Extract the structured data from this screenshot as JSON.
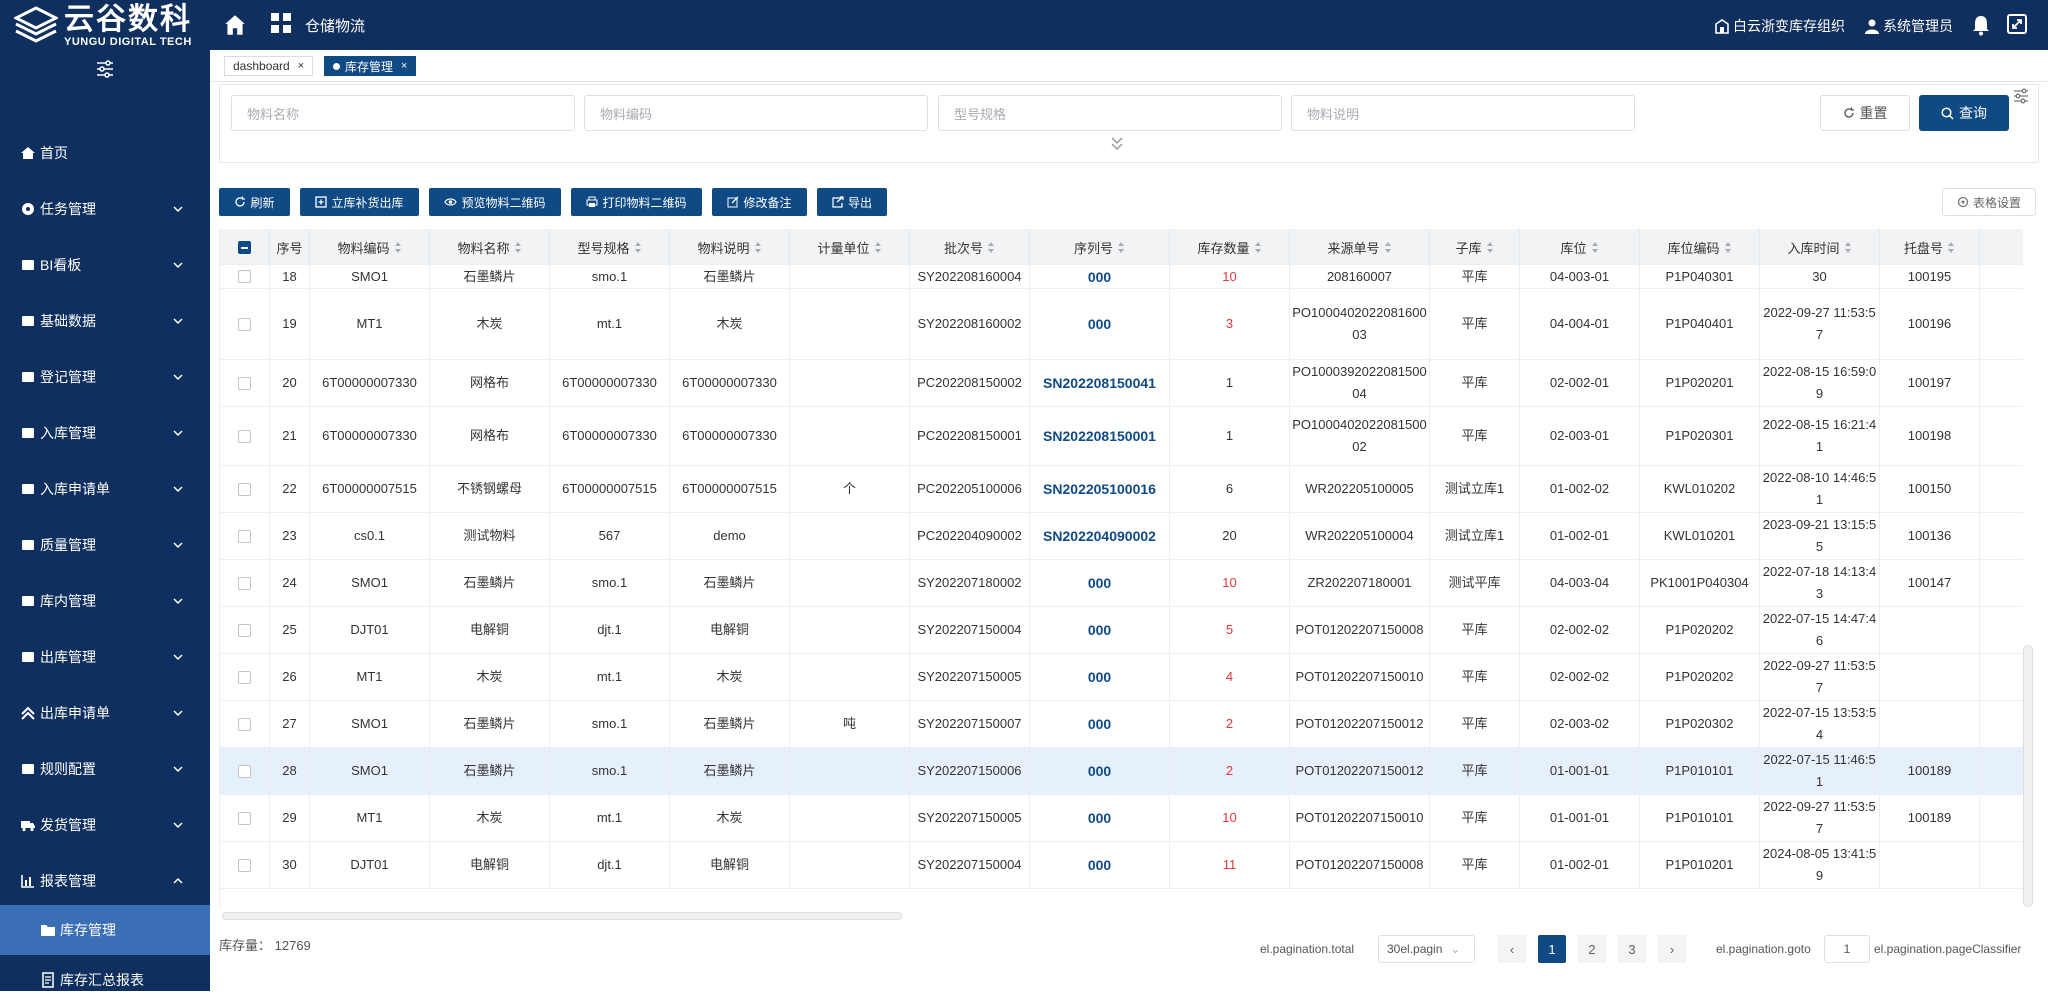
{
  "topbar": {
    "brand_cn": "云谷数科",
    "brand_en": "YUNGU DIGITAL TECH",
    "app_title": "仓储物流",
    "org": "白云浙变库存组织",
    "user": "系统管理员"
  },
  "sidebar": {
    "items": [
      {
        "label": "首页",
        "icon": "home-icon"
      },
      {
        "label": "任务管理",
        "icon": "gear-icon"
      },
      {
        "label": "BI看板",
        "icon": "folder-icon"
      },
      {
        "label": "基础数据",
        "icon": "table-icon"
      },
      {
        "label": "登记管理",
        "icon": "register-icon"
      },
      {
        "label": "入库管理",
        "icon": "inbound-icon"
      },
      {
        "label": "入库申请单",
        "icon": "request-icon"
      },
      {
        "label": "质量管理",
        "icon": "quality-icon"
      },
      {
        "label": "库内管理",
        "icon": "warehouse-icon"
      },
      {
        "label": "出库管理",
        "icon": "outbound-icon"
      },
      {
        "label": "出库申请单",
        "icon": "up-arrow-icon"
      },
      {
        "label": "规则配置",
        "icon": "folder-icon"
      },
      {
        "label": "发货管理",
        "icon": "truck-icon"
      },
      {
        "label": "报表管理",
        "icon": "chart-icon"
      }
    ],
    "sub_items": [
      {
        "label": "库存管理",
        "icon": "folder-icon"
      },
      {
        "label": "库存汇总报表",
        "icon": "document-icon"
      }
    ]
  },
  "tabs": [
    {
      "label": "dashboard"
    },
    {
      "label": "库存管理"
    }
  ],
  "search": {
    "material_name_placeholder": "物料名称",
    "material_code_placeholder": "物料编码",
    "spec_placeholder": "型号规格",
    "desc_placeholder": "物料说明",
    "reset_label": "重置",
    "query_label": "查询"
  },
  "toolbar": {
    "refresh": "刷新",
    "replenish": "立库补货出库",
    "preview_qr": "预览物料二维码",
    "print_qr": "打印物料二维码",
    "edit_remark": "修改备注",
    "export": "导出",
    "table_settings": "表格设置"
  },
  "table": {
    "headers": [
      "序号",
      "物料编码",
      "物料名称",
      "型号规格",
      "物料说明",
      "计量单位",
      "批次号",
      "序列号",
      "库存数量",
      "来源单号",
      "子库",
      "库位",
      "库位编码",
      "入库时间",
      "托盘号"
    ],
    "rows": [
      {
        "no": "18",
        "code": "SMO1",
        "name": "石墨鳞片",
        "spec": "smo.1",
        "desc": "石墨鳞片",
        "unit": "",
        "batch": "SY202208160004",
        "serial": "000",
        "qty": "10",
        "source": "208160007",
        "sub": "平库",
        "loc": "04-003-01",
        "loc_code": "P1P040301",
        "time": "30",
        "pallet": "100195"
      },
      {
        "no": "19",
        "code": "MT1",
        "name": "木炭",
        "spec": "mt.1",
        "desc": "木炭",
        "unit": "",
        "batch": "SY202208160002",
        "serial": "000",
        "qty": "3",
        "source": "PO100040202208160003",
        "sub": "平库",
        "loc": "04-004-01",
        "loc_code": "P1P040401",
        "time": "2022-09-27 11:53:57",
        "pallet": "100196"
      },
      {
        "no": "20",
        "code": "6T00000007330",
        "name": "网格布",
        "spec": "6T00000007330",
        "desc": "6T00000007330",
        "unit": "",
        "batch": "PC202208150002",
        "serial": "SN202208150041",
        "qty": "1",
        "source": "PO100039202208150004",
        "sub": "平库",
        "loc": "02-002-01",
        "loc_code": "P1P020201",
        "time": "2022-08-15 16:59:09",
        "pallet": "100197"
      },
      {
        "no": "21",
        "code": "6T00000007330",
        "name": "网格布",
        "spec": "6T00000007330",
        "desc": "6T00000007330",
        "unit": "",
        "batch": "PC202208150001",
        "serial": "SN202208150001",
        "qty": "1",
        "source": "PO100040202208150002",
        "sub": "平库",
        "loc": "02-003-01",
        "loc_code": "P1P020301",
        "time": "2022-08-15 16:21:41",
        "pallet": "100198"
      },
      {
        "no": "22",
        "code": "6T00000007515",
        "name": "不锈钢螺母",
        "spec": "6T00000007515",
        "desc": "6T00000007515",
        "unit": "个",
        "batch": "PC202205100006",
        "serial": "SN202205100016",
        "qty": "6",
        "source": "WR202205100005",
        "sub": "测试立库1",
        "loc": "01-002-02",
        "loc_code": "KWL010202",
        "time": "2022-08-10 14:46:51",
        "pallet": "100150"
      },
      {
        "no": "23",
        "code": "cs0.1",
        "name": "测试物料",
        "spec": "567",
        "desc": "demo",
        "unit": "",
        "batch": "PC202204090002",
        "serial": "SN202204090002",
        "qty": "20",
        "source": "WR202205100004",
        "sub": "测试立库1",
        "loc": "01-002-01",
        "loc_code": "KWL010201",
        "time": "2023-09-21 13:15:55",
        "pallet": "100136"
      },
      {
        "no": "24",
        "code": "SMO1",
        "name": "石墨鳞片",
        "spec": "smo.1",
        "desc": "石墨鳞片",
        "unit": "",
        "batch": "SY202207180002",
        "serial": "000",
        "qty": "10",
        "source": "ZR202207180001",
        "sub": "测试平库",
        "loc": "04-003-04",
        "loc_code": "PK1001P040304",
        "time": "2022-07-18 14:13:43",
        "pallet": "100147"
      },
      {
        "no": "25",
        "code": "DJT01",
        "name": "电解铜",
        "spec": "djt.1",
        "desc": "电解铜",
        "unit": "",
        "batch": "SY202207150004",
        "serial": "000",
        "qty": "5",
        "source": "POT01202207150008",
        "sub": "平库",
        "loc": "02-002-02",
        "loc_code": "P1P020202",
        "time": "2022-07-15 14:47:46",
        "pallet": ""
      },
      {
        "no": "26",
        "code": "MT1",
        "name": "木炭",
        "spec": "mt.1",
        "desc": "木炭",
        "unit": "",
        "batch": "SY202207150005",
        "serial": "000",
        "qty": "4",
        "source": "POT01202207150010",
        "sub": "平库",
        "loc": "02-002-02",
        "loc_code": "P1P020202",
        "time": "2022-09-27 11:53:57",
        "pallet": ""
      },
      {
        "no": "27",
        "code": "SMO1",
        "name": "石墨鳞片",
        "spec": "smo.1",
        "desc": "石墨鳞片",
        "unit": "吨",
        "batch": "SY202207150007",
        "serial": "000",
        "qty": "2",
        "source": "POT01202207150012",
        "sub": "平库",
        "loc": "02-003-02",
        "loc_code": "P1P020302",
        "time": "2022-07-15 13:53:54",
        "pallet": ""
      },
      {
        "no": "28",
        "code": "SMO1",
        "name": "石墨鳞片",
        "spec": "smo.1",
        "desc": "石墨鳞片",
        "unit": "",
        "batch": "SY202207150006",
        "serial": "000",
        "qty": "2",
        "source": "POT01202207150012",
        "sub": "平库",
        "loc": "01-001-01",
        "loc_code": "P1P010101",
        "time": "2022-07-15 11:46:51",
        "pallet": "100189"
      },
      {
        "no": "29",
        "code": "MT1",
        "name": "木炭",
        "spec": "mt.1",
        "desc": "木炭",
        "unit": "",
        "batch": "SY202207150005",
        "serial": "000",
        "qty": "10",
        "source": "POT01202207150010",
        "sub": "平库",
        "loc": "01-001-01",
        "loc_code": "P1P010101",
        "time": "2022-09-27 11:53:57",
        "pallet": "100189"
      },
      {
        "no": "30",
        "code": "DJT01",
        "name": "电解铜",
        "spec": "djt.1",
        "desc": "电解铜",
        "unit": "",
        "batch": "SY202207150004",
        "serial": "000",
        "qty": "11",
        "source": "POT01202207150008",
        "sub": "平库",
        "loc": "01-002-01",
        "loc_code": "P1P010201",
        "time": "2024-08-05 13:41:59",
        "pallet": ""
      }
    ],
    "highlighted_row": "28"
  },
  "footer": {
    "stock_label": "库存量：",
    "stock_value": "12769",
    "total_label": "el.pagination.total",
    "page_size": "30el.pagin",
    "pages": [
      "1",
      "2",
      "3"
    ],
    "current_page": "1",
    "goto_label": "el.pagination.goto",
    "goto_value": "1",
    "page_classifier": "el.pagination.pageClassifier"
  },
  "colors": {
    "nav_bg": "#0f2f5f",
    "primary": "#0f4a85",
    "active_sub": "#3a6fb5",
    "qty_red": "#e03a3a"
  }
}
